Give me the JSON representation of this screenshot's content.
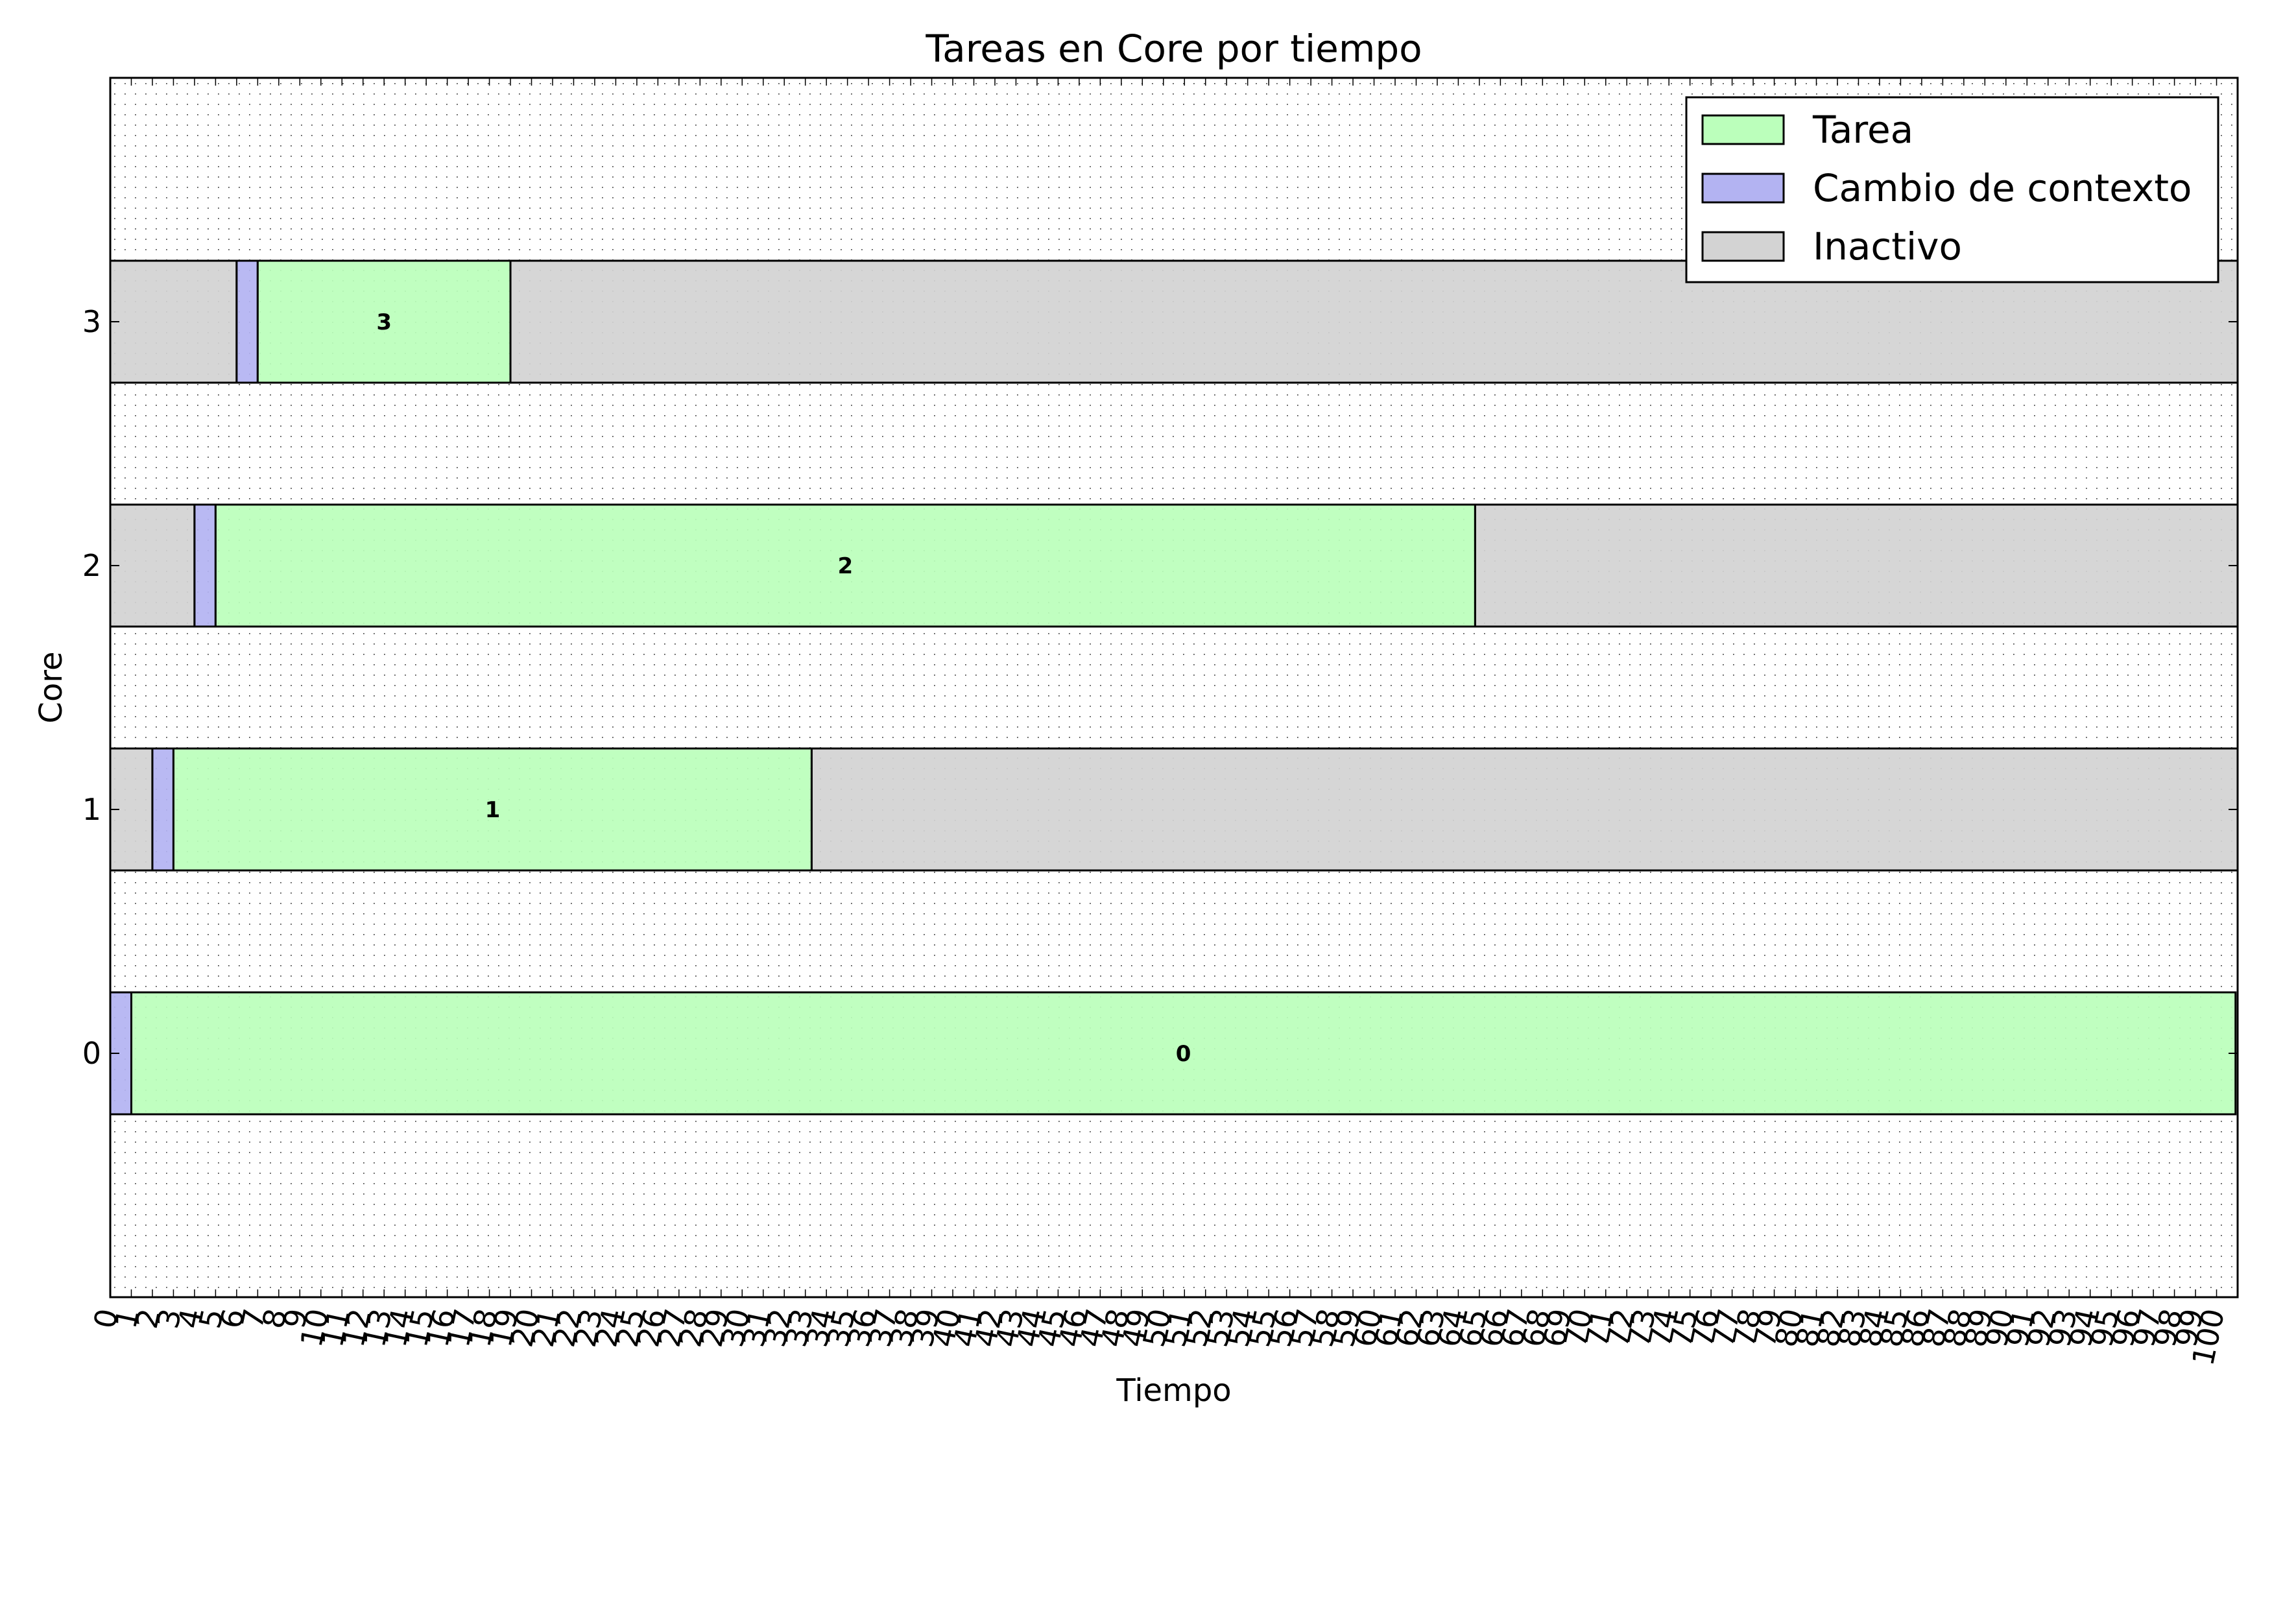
{
  "chart_data": {
    "type": "gantt",
    "title": "Tareas en Core por tiempo",
    "xlabel": "Tiempo",
    "ylabel": "Core",
    "xlim": [
      0,
      101
    ],
    "ylim": [
      -1,
      4
    ],
    "yticks": [
      "0",
      "1",
      "2",
      "3"
    ],
    "grid": true,
    "legend_position": "top-right",
    "legend": [
      {
        "key": "tarea",
        "label": "Tarea",
        "color": "#bbffbb"
      },
      {
        "key": "cambio",
        "label": "Cambio de contexto",
        "color": "#b3b3f2"
      },
      {
        "key": "inactivo",
        "label": "Inactivo",
        "color": "#d3d3d3"
      }
    ],
    "xtick_count": 101,
    "cores": [
      {
        "core": 0,
        "segments": [
          {
            "type": "cambio",
            "start": 0,
            "end": 1
          },
          {
            "type": "tarea",
            "start": 1,
            "end": 100.9,
            "label": "0"
          }
        ]
      },
      {
        "core": 1,
        "segments": [
          {
            "type": "inactivo",
            "start": 0,
            "end": 2
          },
          {
            "type": "cambio",
            "start": 2,
            "end": 3
          },
          {
            "type": "tarea",
            "start": 3,
            "end": 33.3,
            "label": "1"
          },
          {
            "type": "inactivo",
            "start": 33.3,
            "end": 101
          }
        ]
      },
      {
        "core": 2,
        "segments": [
          {
            "type": "inactivo",
            "start": 0,
            "end": 4
          },
          {
            "type": "cambio",
            "start": 4,
            "end": 5
          },
          {
            "type": "tarea",
            "start": 5,
            "end": 64.8,
            "label": "2"
          },
          {
            "type": "inactivo",
            "start": 64.8,
            "end": 101
          }
        ]
      },
      {
        "core": 3,
        "segments": [
          {
            "type": "inactivo",
            "start": 0,
            "end": 6
          },
          {
            "type": "cambio",
            "start": 6,
            "end": 7
          },
          {
            "type": "tarea",
            "start": 7,
            "end": 19,
            "label": "3"
          },
          {
            "type": "inactivo",
            "start": 19,
            "end": 101
          }
        ]
      }
    ]
  }
}
